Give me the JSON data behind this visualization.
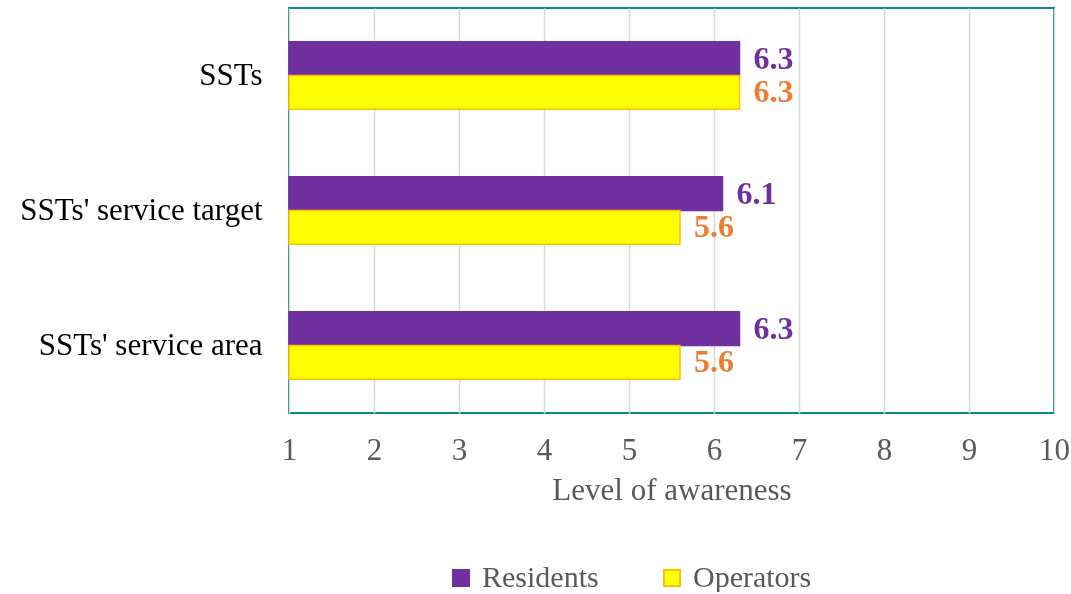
{
  "chart_data": {
    "type": "bar",
    "orientation": "horizontal",
    "categories": [
      "SSTs",
      "SSTs' service target",
      "SSTs' service area"
    ],
    "series": [
      {
        "name": "Residents",
        "color": "#7030a0",
        "values": [
          6.3,
          6.1,
          6.3
        ]
      },
      {
        "name": "Operators",
        "color": "#ffff00",
        "values": [
          6.3,
          5.6,
          5.6
        ]
      }
    ],
    "xlabel": "Level of awareness",
    "xlim": [
      1,
      10
    ],
    "xticks": [
      1,
      2,
      3,
      4,
      5,
      6,
      7,
      8,
      9,
      10
    ],
    "grid": "x",
    "legend": "bottom",
    "data_labels": true
  }
}
